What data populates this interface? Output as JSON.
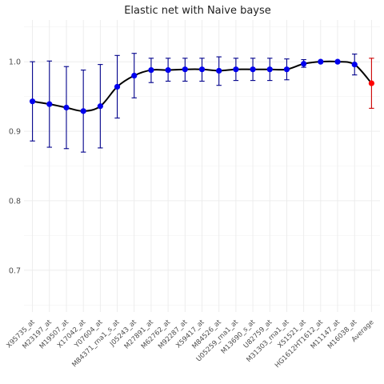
{
  "chart_data": {
    "type": "line",
    "title": "Elastic net with Naive bayse",
    "xlabel": "",
    "ylabel": "",
    "categories": [
      "X95735_at",
      "M23197_at",
      "M19507_at",
      "X17042_at",
      "Y07604_at",
      "M84371_rna1_s_at",
      "J05243_at",
      "M27891_at",
      "M62762_at",
      "M92287_at",
      "X59417_at",
      "M84526_at",
      "U05259_rna1_at",
      "M13690_s_at",
      "U82759_at",
      "M31303_rna1_at",
      "X51521_at",
      "HG1612HT1612_at",
      "M11147_at",
      "M16038_at",
      "Average"
    ],
    "values": [
      0.943,
      0.939,
      0.934,
      0.929,
      0.936,
      0.964,
      0.98,
      0.988,
      0.988,
      0.989,
      0.989,
      0.987,
      0.989,
      0.989,
      0.989,
      0.989,
      0.997,
      1.0,
      1.0,
      0.996,
      0.969
    ],
    "lower": [
      0.886,
      0.877,
      0.875,
      0.87,
      0.876,
      0.919,
      0.948,
      0.97,
      0.972,
      0.972,
      0.972,
      0.966,
      0.973,
      0.973,
      0.973,
      0.974,
      0.992,
      1.0,
      1.0,
      0.981,
      0.933
    ],
    "upper": [
      1.0,
      1.001,
      0.993,
      0.988,
      0.996,
      1.009,
      1.012,
      1.005,
      1.005,
      1.005,
      1.005,
      1.007,
      1.005,
      1.005,
      1.005,
      1.004,
      1.003,
      1.0,
      1.0,
      1.011,
      1.005
    ],
    "ylim": [
      0.64,
      1.06
    ],
    "yticks": [
      0.7,
      0.8,
      0.9,
      1.0
    ],
    "ytick_labels": [
      "0.7",
      "0.8",
      "0.9",
      "1.0"
    ],
    "grid": true,
    "legend": "none",
    "colors": {
      "point": "#0000ee",
      "errorbar": "#00008b",
      "average_point": "#ff0000",
      "average_errorbar": "#cd0000",
      "line": "#000000",
      "grid": "#ebebeb"
    }
  }
}
